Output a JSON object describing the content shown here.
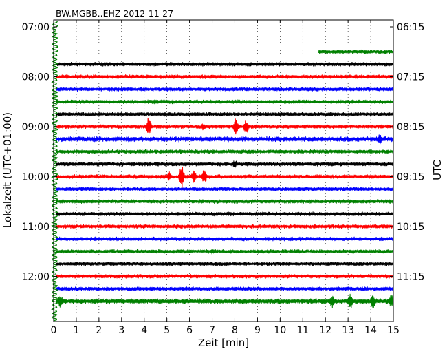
{
  "chart_data": {
    "type": "line",
    "title": "BW.MGBB..EHZ 2012-11-27",
    "xlabel": "Zeit  [min]",
    "ylabel": "Lokalzeit (UTC+01:00)",
    "ylabel_right": "UTC",
    "xlim": [
      0,
      15
    ],
    "x_ticks": [
      "0",
      "1",
      "2",
      "3",
      "4",
      "5",
      "6",
      "7",
      "8",
      "9",
      "10",
      "11",
      "12",
      "13",
      "14",
      "15"
    ],
    "left_tick_labels": [
      "07:00",
      "08:00",
      "09:00",
      "10:00",
      "11:00",
      "12:00"
    ],
    "right_tick_labels": [
      "06:15",
      "07:15",
      "08:15",
      "09:15",
      "10:15",
      "11:15"
    ],
    "row_step_minutes": 15,
    "first_row_local": "07:00",
    "colors": [
      "#000000",
      "#ff0000",
      "#0000ff",
      "#008000"
    ],
    "traces": [
      {
        "row": 2,
        "start_min": 11.7,
        "color": "#008000",
        "amp": 3,
        "events": []
      },
      {
        "row": 3,
        "start_min": 0.1,
        "color": "#000000",
        "amp": 3,
        "events": []
      },
      {
        "row": 4,
        "start_min": 0.1,
        "color": "#ff0000",
        "amp": 3,
        "events": []
      },
      {
        "row": 5,
        "start_min": 0.1,
        "color": "#0000ff",
        "amp": 3,
        "events": []
      },
      {
        "row": 6,
        "start_min": 0.1,
        "color": "#008000",
        "amp": 3,
        "events": [
          {
            "t": 4.5,
            "a": 4
          }
        ]
      },
      {
        "row": 7,
        "start_min": 0.1,
        "color": "#000000",
        "amp": 3,
        "events": []
      },
      {
        "row": 8,
        "start_min": 0.1,
        "color": "#ff0000",
        "amp": 3,
        "events": [
          {
            "t": 4.2,
            "a": 14
          },
          {
            "t": 6.6,
            "a": 5
          },
          {
            "t": 8.05,
            "a": 13
          },
          {
            "t": 8.5,
            "a": 11
          }
        ]
      },
      {
        "row": 9,
        "start_min": 0.1,
        "color": "#0000ff",
        "amp": 4,
        "events": [
          {
            "t": 14.4,
            "a": 7
          }
        ]
      },
      {
        "row": 10,
        "start_min": 0.1,
        "color": "#008000",
        "amp": 3,
        "events": []
      },
      {
        "row": 11,
        "start_min": 0.1,
        "color": "#000000",
        "amp": 3,
        "events": [
          {
            "t": 8.0,
            "a": 6
          }
        ]
      },
      {
        "row": 12,
        "start_min": 0.1,
        "color": "#ff0000",
        "amp": 3,
        "events": [
          {
            "t": 5.1,
            "a": 7
          },
          {
            "t": 5.65,
            "a": 17
          },
          {
            "t": 6.2,
            "a": 10
          },
          {
            "t": 6.65,
            "a": 11
          }
        ]
      },
      {
        "row": 13,
        "start_min": 0.1,
        "color": "#0000ff",
        "amp": 3,
        "events": []
      },
      {
        "row": 14,
        "start_min": 0.1,
        "color": "#008000",
        "amp": 3,
        "events": []
      },
      {
        "row": 15,
        "start_min": 0.1,
        "color": "#000000",
        "amp": 3,
        "events": []
      },
      {
        "row": 16,
        "start_min": 0.1,
        "color": "#ff0000",
        "amp": 3,
        "events": []
      },
      {
        "row": 17,
        "start_min": 0.1,
        "color": "#0000ff",
        "amp": 3,
        "events": []
      },
      {
        "row": 18,
        "start_min": 0.1,
        "color": "#008000",
        "amp": 3,
        "events": [
          {
            "t": 7.0,
            "a": 4
          }
        ]
      },
      {
        "row": 19,
        "start_min": 0.1,
        "color": "#000000",
        "amp": 3,
        "events": []
      },
      {
        "row": 20,
        "start_min": 0.1,
        "color": "#ff0000",
        "amp": 3,
        "events": []
      },
      {
        "row": 21,
        "start_min": 0.1,
        "color": "#0000ff",
        "amp": 3,
        "events": []
      },
      {
        "row": 22,
        "start_min": 0.1,
        "color": "#008000",
        "amp": 4,
        "events": [
          {
            "t": 0.3,
            "a": 9
          },
          {
            "t": 12.3,
            "a": 10
          },
          {
            "t": 13.1,
            "a": 12
          },
          {
            "t": 14.1,
            "a": 11
          },
          {
            "t": 14.9,
            "a": 11
          }
        ]
      }
    ]
  }
}
